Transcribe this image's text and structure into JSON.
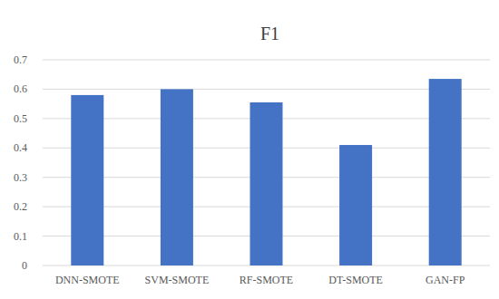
{
  "chart_data": {
    "type": "bar",
    "title": "F1",
    "categories": [
      "DNN-SMOTE",
      "SVM-SMOTE",
      "RF-SMOTE",
      "DT-SMOTE",
      "GAN-FP"
    ],
    "values": [
      0.58,
      0.6,
      0.555,
      0.41,
      0.635
    ],
    "color": "#4472c4",
    "ylim": [
      0,
      0.7
    ],
    "yticks": [
      0,
      0.1,
      0.2,
      0.3,
      0.4,
      0.5,
      0.6,
      0.7
    ],
    "grid": true
  }
}
